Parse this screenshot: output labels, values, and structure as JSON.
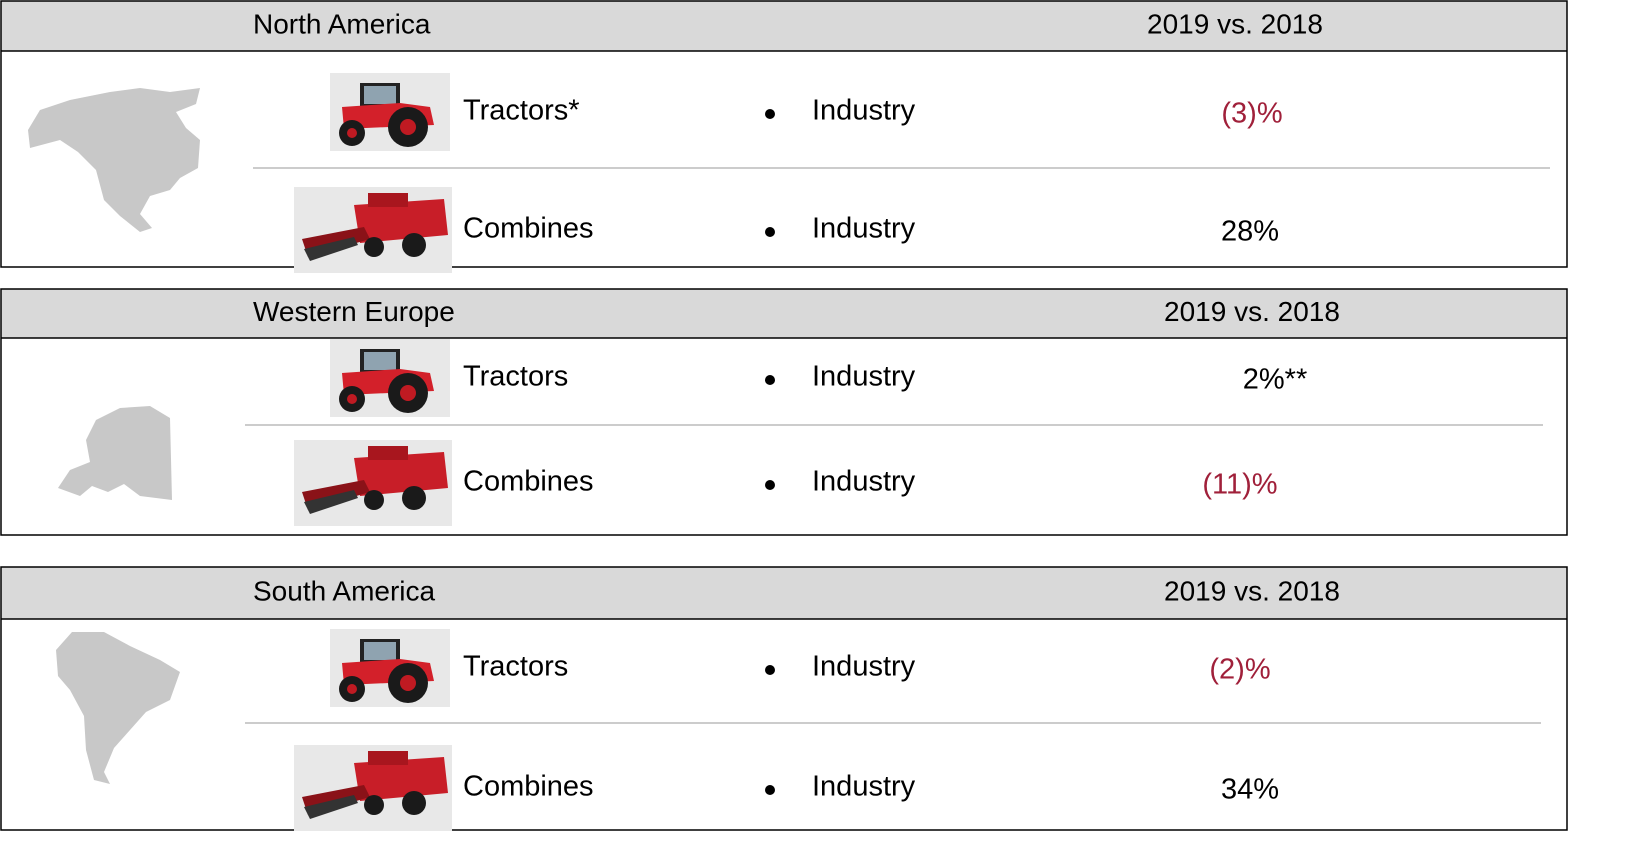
{
  "sections": [
    {
      "region": "North America",
      "period": "2019 vs. 2018",
      "rows": [
        {
          "product": "Tractors*",
          "measure": "Industry",
          "value": "(3)%"
        },
        {
          "product": "Combines",
          "measure": "Industry",
          "value": "28%"
        }
      ]
    },
    {
      "region": "Western Europe",
      "period": "2019 vs. 2018",
      "rows": [
        {
          "product": "Tractors",
          "measure": "Industry",
          "value": "2%**"
        },
        {
          "product": "Combines",
          "measure": "Industry",
          "value": "(11)%"
        }
      ]
    },
    {
      "region": "South America",
      "period": "2019 vs. 2018",
      "rows": [
        {
          "product": "Tractors",
          "measure": "Industry",
          "value": "(2)%"
        },
        {
          "product": "Combines",
          "measure": "Industry",
          "value": "34%"
        }
      ]
    }
  ]
}
